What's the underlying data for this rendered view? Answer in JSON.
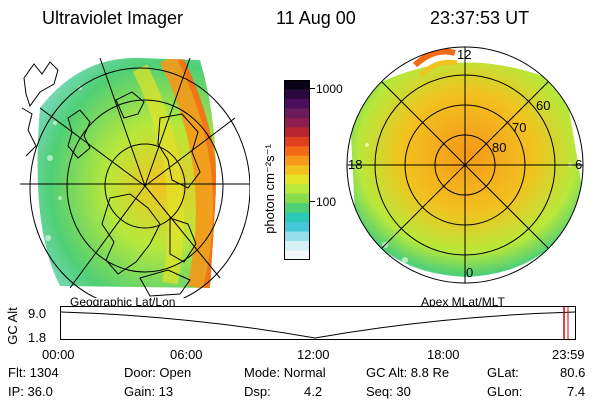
{
  "header": {
    "instrument": "Ultraviolet Imager",
    "date": "11 Aug 00",
    "time": "23:37:53 UT"
  },
  "left_panel": {
    "caption": "Geographic Lat/Lon"
  },
  "right_panel": {
    "caption": "Apex MLat/MLT",
    "lat_labels": [
      "80",
      "70",
      "60"
    ],
    "mlt_labels": {
      "top": "12",
      "left": "18",
      "right": "6",
      "bottom": "0"
    }
  },
  "colorbar": {
    "unit_label": "photon cm⁻²s⁻¹",
    "ticks": [
      "1000",
      "100"
    ],
    "colors": [
      "#0b0418",
      "#2a0a3e",
      "#4a0f5a",
      "#6b1a5c",
      "#8e1e4d",
      "#b8242f",
      "#e04020",
      "#f36a16",
      "#f6981a",
      "#f2c21f",
      "#e3e328",
      "#b8e83b",
      "#86dc4b",
      "#4fcf76",
      "#2cc8b7",
      "#45c7d8",
      "#96dee9",
      "#d6f1f5",
      "#f2f8f8"
    ]
  },
  "timeline": {
    "ylabel": "GC Alt",
    "ticks_y": [
      "9.0",
      "1.8"
    ],
    "ticks_x": [
      "00:00",
      "06:00",
      "12:00",
      "18:00",
      "23:59"
    ],
    "marker_color": "#d40000"
  },
  "info": {
    "flt": "Flt:  1304",
    "ip": "IP:  36.0",
    "door": "Door:  Open",
    "gain": "Gain:  13",
    "mode": "Mode:  Normal",
    "dsp": "Dsp:",
    "dsp_val": "4.2",
    "gcalt": "GC Alt:  8.8 Re",
    "seq": "Seq:  30",
    "glat": "GLat:",
    "glat_val": "80.6",
    "glon": "GLon:",
    "glon_val": "7.4"
  }
}
